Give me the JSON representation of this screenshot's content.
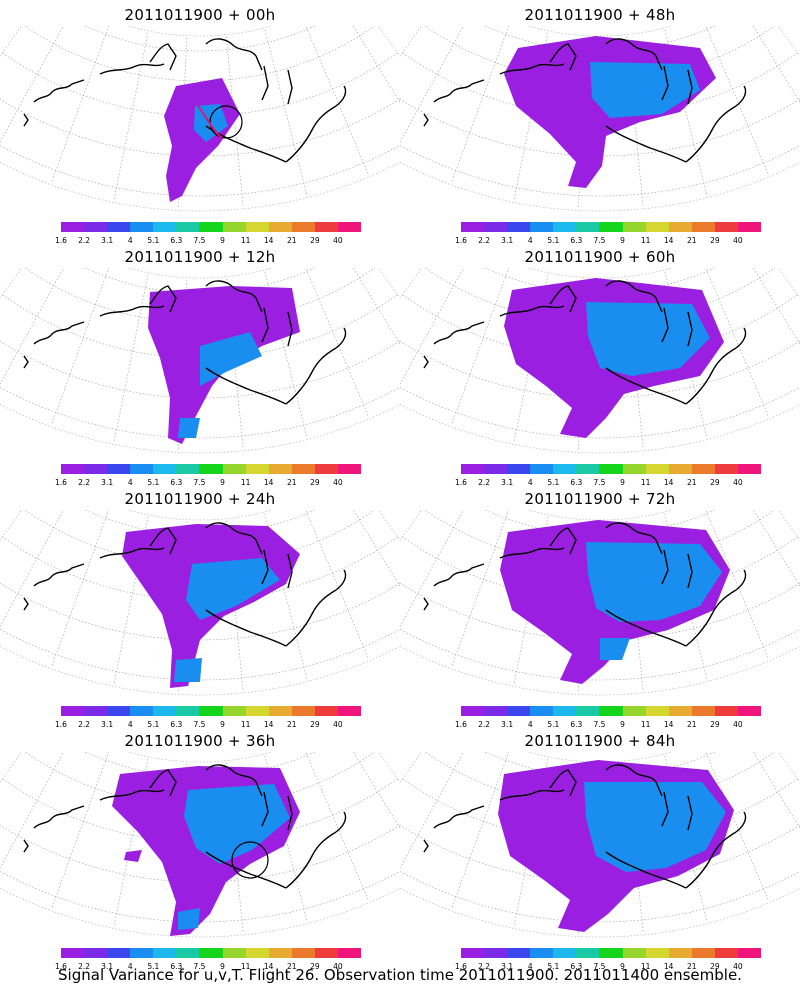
{
  "caption": "Signal Variance for u,v,T. Flight 26. Observation time 2011011900. 2011011400 ensemble.",
  "colorbar": {
    "labels": [
      "1.6",
      "2.2",
      "3.1",
      "4",
      "5.1",
      "6.3",
      "7.5",
      "9",
      "11",
      "14",
      "21",
      "29",
      "40"
    ],
    "colors": [
      "#9a1fe0",
      "#7b2be8",
      "#3b46ee",
      "#1a8ef0",
      "#1cb9ee",
      "#1ac9a5",
      "#15d41c",
      "#94d62c",
      "#d6d631",
      "#e6ab30",
      "#eb7a2c",
      "#ee3c3c",
      "#f0157a"
    ]
  },
  "panels": [
    {
      "title": "2011011900 + 00h",
      "lead": 0
    },
    {
      "title": "2011011900 + 48h",
      "lead": 48
    },
    {
      "title": "2011011900 + 12h",
      "lead": 12
    },
    {
      "title": "2011011900 + 60h",
      "lead": 60
    },
    {
      "title": "2011011900 + 24h",
      "lead": 24
    },
    {
      "title": "2011011900 + 72h",
      "lead": 72
    },
    {
      "title": "2011011900 + 36h",
      "lead": 36
    },
    {
      "title": "2011011900 + 84h",
      "lead": 84
    }
  ]
}
